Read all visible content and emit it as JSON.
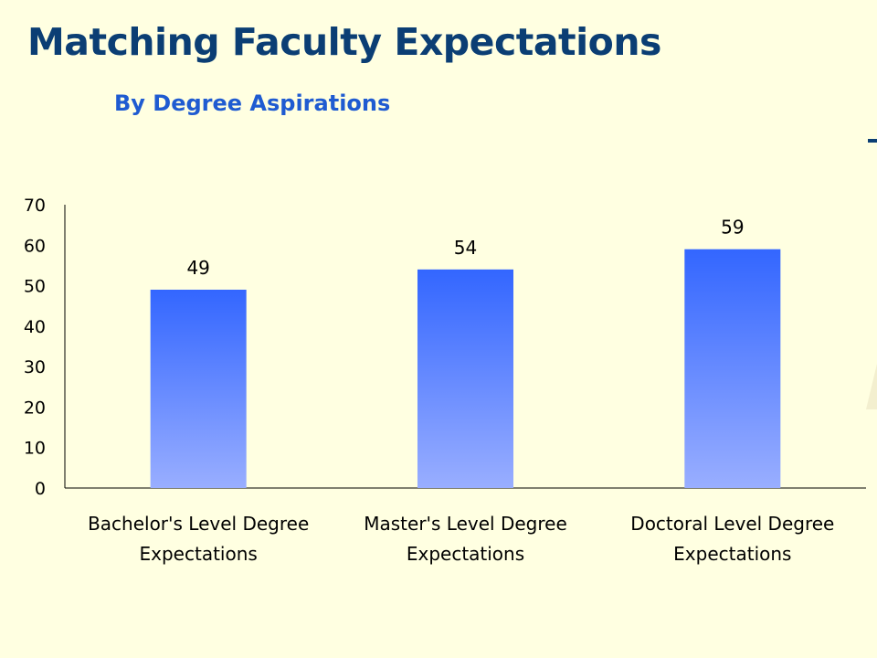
{
  "slide": {
    "title": "Matching Faculty Expectations",
    "subtitle": "By Degree Aspirations",
    "colors": {
      "background": "#FFFFE1",
      "title": "#0B3E74",
      "subtitle": "#1F5BD1",
      "bar_top": "#3366FF",
      "bar_bottom": "#99AEFF"
    }
  },
  "chart_data": {
    "type": "bar",
    "categories": [
      [
        "Bachelor's Level Degree",
        "Expectations"
      ],
      [
        "Master's Level Degree",
        "Expectations"
      ],
      [
        "Doctoral Level Degree",
        "Expectations"
      ]
    ],
    "values": [
      49,
      54,
      59
    ],
    "data_labels": [
      "49",
      "54",
      "59"
    ],
    "ylim": [
      0,
      70
    ],
    "yticks": [
      0,
      10,
      20,
      30,
      40,
      50,
      60,
      70
    ],
    "grid": false,
    "legend": "none"
  }
}
